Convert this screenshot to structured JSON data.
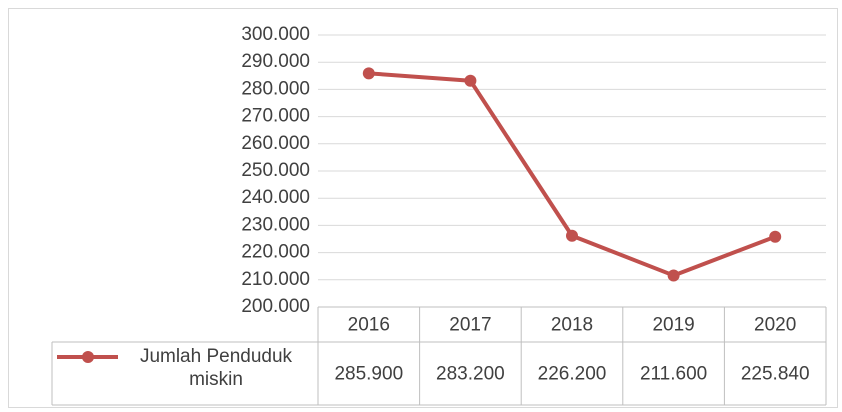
{
  "chart_data": {
    "type": "line",
    "categories": [
      "2016",
      "2017",
      "2018",
      "2019",
      "2020"
    ],
    "series": [
      {
        "name": "Jumlah Penduduk miskin",
        "color": "#c0504d",
        "values": [
          285900,
          283200,
          226200,
          211600,
          225840
        ],
        "value_labels": [
          "285.900",
          "283.200",
          "226.200",
          "211.600",
          "225.840"
        ]
      }
    ],
    "ylim": [
      200000,
      300000
    ],
    "yticks": [
      {
        "value": 200000,
        "label": "200.000"
      },
      {
        "value": 210000,
        "label": "210.000"
      },
      {
        "value": 220000,
        "label": "220.000"
      },
      {
        "value": 230000,
        "label": "230.000"
      },
      {
        "value": 240000,
        "label": "240.000"
      },
      {
        "value": 250000,
        "label": "250.000"
      },
      {
        "value": 260000,
        "label": "260.000"
      },
      {
        "value": 270000,
        "label": "270.000"
      },
      {
        "value": 280000,
        "label": "280.000"
      },
      {
        "value": 290000,
        "label": "290.000"
      },
      {
        "value": 300000,
        "label": "300.000"
      }
    ],
    "grid": true
  }
}
